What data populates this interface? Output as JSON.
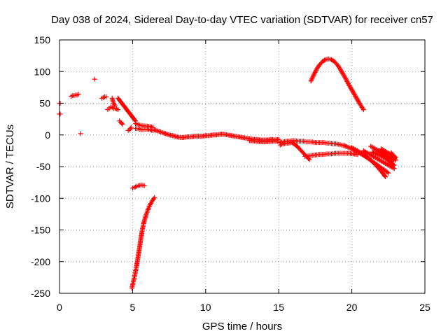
{
  "chart_data": {
    "type": "scatter",
    "title": "Day 038 of 2024, Sidereal Day-to-day VTEC variation (SDTVAR) for receiver cn57",
    "xlabel": "GPS time / hours",
    "ylabel": "SDTVAR / TECUs",
    "xlim": [
      0,
      25
    ],
    "ylim": [
      -250,
      150
    ],
    "xticks": [
      0,
      5,
      10,
      15,
      20,
      25
    ],
    "yticks": [
      150,
      100,
      50,
      0,
      -50,
      -100,
      -150,
      -200,
      -250
    ],
    "grid": true,
    "marker": "+",
    "color": "#ff0000",
    "segments": [
      {
        "x": [
          0.0,
          0.05
        ],
        "y": [
          50,
          50
        ]
      },
      {
        "x": [
          0.0,
          0.05
        ],
        "y": [
          33,
          33
        ]
      },
      {
        "x": [
          0.8,
          0.9,
          1.0,
          1.1,
          1.2,
          1.3
        ],
        "y": [
          61,
          62,
          62,
          63,
          63,
          64
        ]
      },
      {
        "x": [
          1.45
        ],
        "y": [
          2
        ]
      },
      {
        "x": [
          2.4
        ],
        "y": [
          88
        ]
      },
      {
        "x": [
          2.9,
          3.0,
          3.1,
          3.2
        ],
        "y": [
          58,
          59,
          60,
          60
        ]
      },
      {
        "x": [
          3.3,
          3.4,
          3.5,
          3.6,
          3.7,
          3.8,
          3.9,
          4.0
        ],
        "y": [
          40,
          42,
          44,
          43,
          42,
          42,
          41,
          40
        ]
      },
      {
        "x": [
          3.6,
          3.7,
          3.8
        ],
        "y": [
          58,
          50,
          46
        ]
      },
      {
        "x": [
          4.1,
          4.2,
          4.3
        ],
        "y": [
          22,
          20,
          17
        ]
      },
      {
        "x": [
          4.0,
          4.2,
          4.4,
          4.6,
          4.8,
          5.0,
          5.2
        ],
        "y": [
          58,
          52,
          46,
          40,
          34,
          28,
          22
        ]
      },
      {
        "x": [
          4.7,
          4.8,
          4.9
        ],
        "y": [
          7,
          8,
          12
        ]
      },
      {
        "x": [
          5.2,
          5.4,
          5.6,
          5.8,
          6.0,
          6.2,
          6.4
        ],
        "y": [
          18,
          16,
          15,
          14,
          14,
          13,
          12
        ]
      },
      {
        "x": [
          5.2,
          5.4,
          5.6,
          5.8,
          6.0,
          6.2,
          6.4
        ],
        "y": [
          10,
          10,
          8,
          9,
          9,
          8,
          7
        ]
      },
      {
        "x": [
          5.0,
          5.2,
          5.4,
          5.6,
          5.8
        ],
        "y": [
          -84,
          -82,
          -80,
          -79,
          -80
        ]
      },
      {
        "x": [
          4.95,
          5.05,
          5.15,
          5.25,
          5.35,
          5.45,
          5.55,
          5.65,
          5.75,
          5.9,
          6.05,
          6.2,
          6.35,
          6.5
        ],
        "y": [
          -242,
          -232,
          -222,
          -210,
          -196,
          -182,
          -166,
          -152,
          -140,
          -128,
          -118,
          -110,
          -104,
          -99
        ]
      },
      {
        "x": [
          6.5,
          6.75,
          7.0,
          7.25,
          7.5,
          7.75,
          8.0,
          8.25,
          8.5,
          8.75,
          9.0,
          9.25,
          9.5,
          9.75,
          10.0,
          10.25,
          10.5,
          10.75,
          11.0,
          11.25,
          11.5,
          11.75,
          12.0,
          12.25,
          12.5,
          12.75,
          13.0,
          13.25,
          13.5,
          13.75,
          14.0,
          14.25,
          14.5,
          14.75,
          15.0
        ],
        "y": [
          8,
          6,
          4,
          2,
          0,
          -1,
          -3,
          -4,
          -4,
          -3,
          -3,
          -2,
          -2,
          -2,
          -1,
          -1,
          0,
          0,
          1,
          1,
          0,
          -1,
          -2,
          -3,
          -4,
          -5,
          -6,
          -7,
          -7,
          -8,
          -8,
          -8,
          -7,
          -8,
          -7
        ]
      },
      {
        "x": [
          13.0,
          13.5,
          14.0,
          14.5,
          15.0
        ],
        "y": [
          -9,
          -10,
          -11,
          -10,
          -10
        ]
      },
      {
        "x": [
          15.1,
          15.3,
          15.5,
          15.7,
          15.9,
          16.1,
          16.3,
          16.5,
          16.7,
          16.9,
          17.1,
          17.3,
          17.5,
          17.7,
          17.9,
          18.1,
          18.3,
          18.5,
          18.7,
          18.9,
          19.1,
          19.3,
          19.5
        ],
        "y": [
          -12,
          -11,
          -10,
          -10,
          -9,
          -9,
          -10,
          -10,
          -10,
          -11,
          -11,
          -11,
          -12,
          -12,
          -12,
          -12,
          -13,
          -13,
          -14,
          -14,
          -15,
          -16,
          -17
        ]
      },
      {
        "x": [
          15.1,
          15.3,
          15.5,
          15.7,
          15.9,
          16.1,
          16.3,
          16.5,
          16.7,
          16.9,
          17.1
        ],
        "y": [
          -16,
          -14,
          -13,
          -13,
          -12,
          -15,
          -19,
          -24,
          -29,
          -34,
          -39
        ]
      },
      {
        "x": [
          16.8,
          17.1,
          17.4,
          17.7,
          18.0,
          18.3,
          18.6,
          18.9,
          19.2,
          19.5,
          19.8,
          20.1,
          20.4
        ],
        "y": [
          -34,
          -33,
          -32,
          -31,
          -31,
          -30,
          -30,
          -29,
          -29,
          -29,
          -29,
          -30,
          -31
        ]
      },
      {
        "x": [
          19.5,
          19.8,
          20.1,
          20.4,
          20.7,
          21.0,
          21.3,
          21.6,
          21.9,
          22.2,
          22.5
        ],
        "y": [
          -17,
          -20,
          -23,
          -27,
          -31,
          -35,
          -40,
          -45,
          -50,
          -55,
          -60
        ]
      },
      {
        "x": [
          20.0,
          20.3,
          20.6,
          20.9,
          21.2,
          21.5,
          21.8,
          22.1,
          22.3
        ],
        "y": [
          -20,
          -24,
          -28,
          -33,
          -38,
          -44,
          -52,
          -60,
          -66
        ]
      },
      {
        "x": [
          20.8,
          21.1,
          21.4,
          21.7,
          22.0,
          22.3,
          22.6,
          22.9
        ],
        "y": [
          -25,
          -29,
          -33,
          -37,
          -41,
          -45,
          -49,
          -53
        ]
      },
      {
        "x": [
          21.3,
          21.6,
          21.9,
          22.2,
          22.5,
          22.8
        ],
        "y": [
          -18,
          -22,
          -26,
          -30,
          -35,
          -38
        ]
      },
      {
        "x": [
          21.4,
          21.7,
          22.0,
          22.3,
          22.6,
          22.9
        ],
        "y": [
          -27,
          -30,
          -33,
          -37,
          -42,
          -48
        ]
      },
      {
        "x": [
          22.0,
          22.3,
          22.6,
          22.9
        ],
        "y": [
          -22,
          -26,
          -30,
          -34
        ]
      },
      {
        "x": [
          22.6,
          22.7,
          22.8,
          22.9,
          23.0
        ],
        "y": [
          -30,
          -28,
          -32,
          -36,
          -40
        ]
      },
      {
        "x": [
          22.6,
          22.8,
          23.0
        ],
        "y": [
          -45,
          -40,
          -35
        ]
      },
      {
        "x": [
          17.2,
          17.4,
          17.6,
          17.8,
          18.0,
          18.2,
          18.4,
          18.6,
          18.8,
          19.0,
          19.2,
          19.4,
          19.6,
          19.8,
          20.0,
          20.2,
          20.4,
          20.6,
          20.8
        ],
        "y": [
          85,
          95,
          104,
          111,
          116,
          119,
          120,
          119,
          116,
          111,
          104,
          96,
          88,
          79,
          71,
          63,
          55,
          47,
          40
        ]
      }
    ]
  }
}
